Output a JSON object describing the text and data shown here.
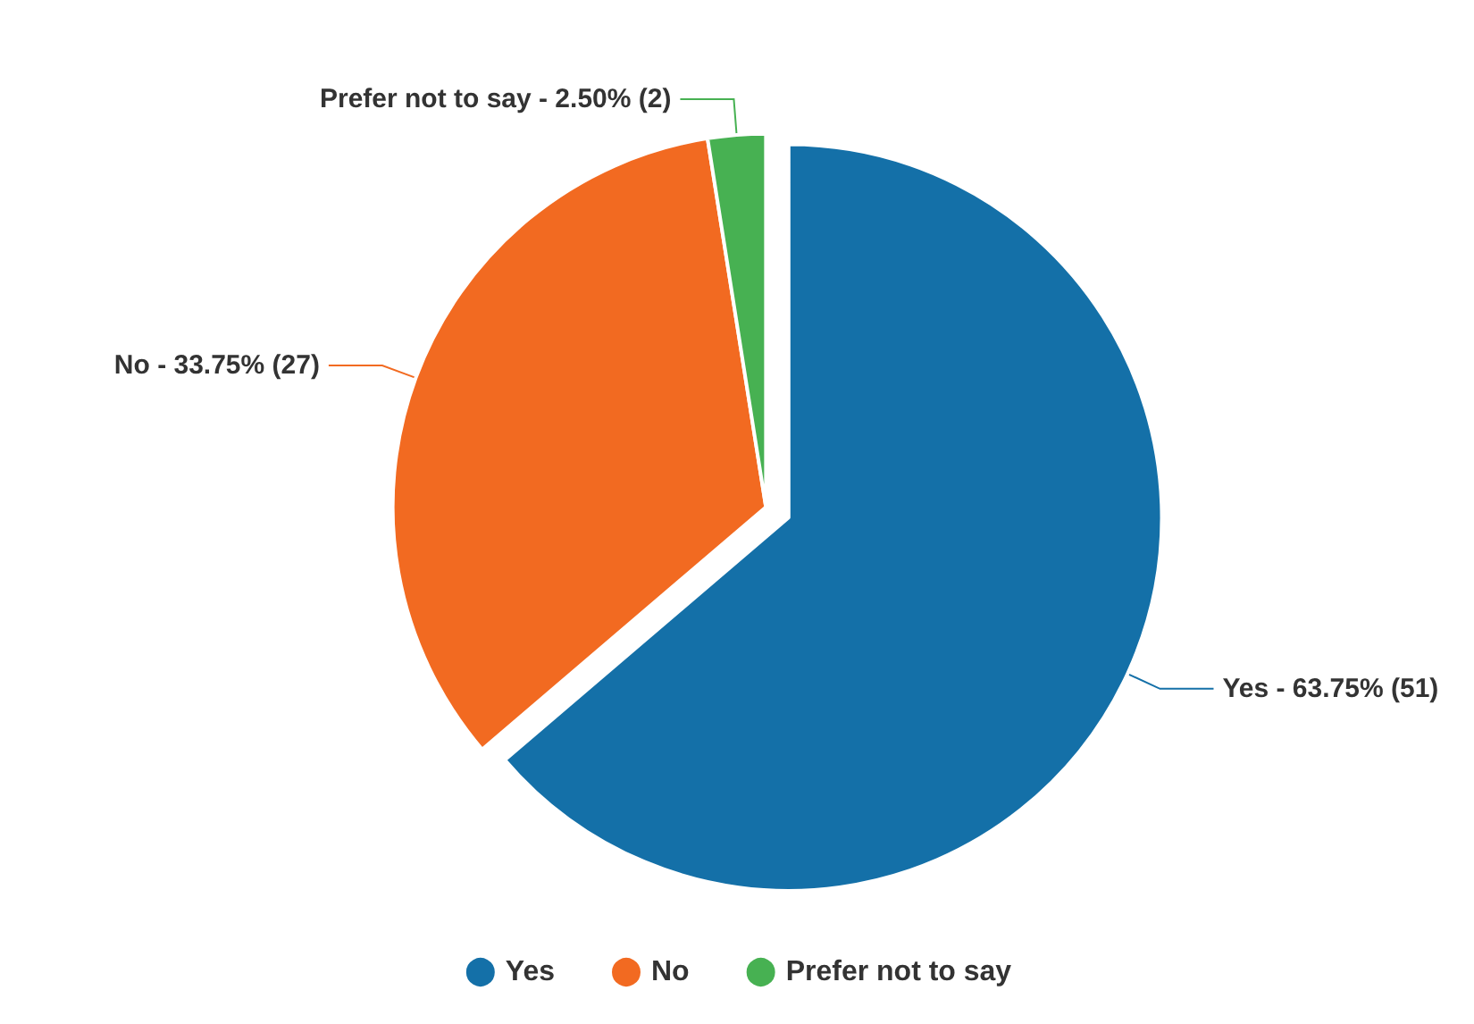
{
  "chart_data": {
    "type": "pie",
    "categories": [
      "Yes",
      "No",
      "Prefer not to say"
    ],
    "values": [
      51,
      27,
      2
    ],
    "colors": [
      "#1470a8",
      "#f26a21",
      "#47b152"
    ],
    "value_labels": [
      "Yes - 63.75% (51)",
      "No - 33.75% (27)",
      "Prefer not to say - 2.50% (2)"
    ],
    "legend": "bottom"
  }
}
